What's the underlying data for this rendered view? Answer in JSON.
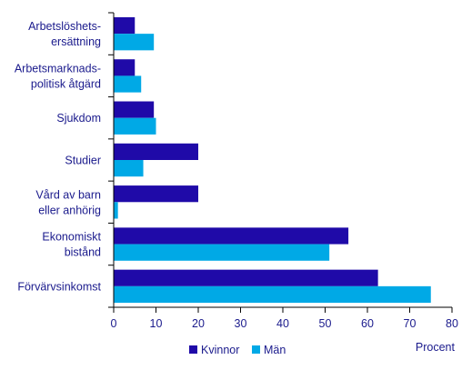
{
  "chart_data": {
    "type": "bar",
    "orientation": "horizontal",
    "categories": [
      [
        "Arbetslöshets-",
        "ersättning"
      ],
      [
        "Arbetsmarknads-",
        "politisk åtgärd"
      ],
      [
        "Sjukdom"
      ],
      [
        "Studier"
      ],
      [
        "Vård av barn",
        "eller anhörig"
      ],
      [
        "Ekonomiskt",
        "bistånd"
      ],
      [
        "Förvärvsinkomst"
      ]
    ],
    "series": [
      {
        "name": "Kvinnor",
        "color": "#1f0aa8",
        "values": [
          5,
          5,
          9.5,
          20,
          20,
          55.5,
          62.5
        ]
      },
      {
        "name": "Män",
        "color": "#00a9e6",
        "values": [
          9.5,
          6.5,
          10,
          7,
          1,
          51,
          75
        ]
      }
    ],
    "xlabel": "Procent",
    "xlim": [
      0,
      80
    ],
    "xticks": [
      "0",
      "10",
      "20",
      "30",
      "40",
      "50",
      "60",
      "70",
      "80"
    ],
    "grid": false,
    "legend_position": "bottom"
  }
}
